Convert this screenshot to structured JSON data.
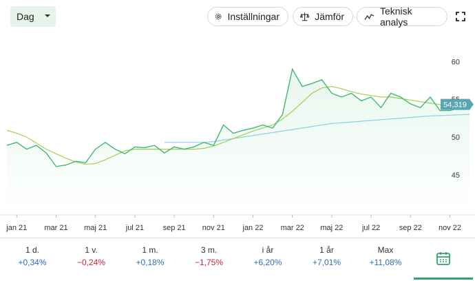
{
  "toolbar": {
    "interval": "Dag",
    "buttons": [
      "Inställningar",
      "Jämför",
      "Teknisk analys"
    ]
  },
  "chart_data": {
    "type": "line",
    "categories": [
      null,
      "jan 21",
      null,
      null,
      null,
      "mar 21",
      null,
      null,
      null,
      "maj 21",
      null,
      null,
      null,
      "jul 21",
      null,
      null,
      null,
      "sep 21",
      null,
      null,
      null,
      "nov 21",
      null,
      null,
      null,
      "jan 22",
      null,
      null,
      null,
      "mar 22",
      null,
      null,
      null,
      "maj 22",
      null,
      null,
      null,
      "jul 22",
      null,
      null,
      null,
      "sep 22",
      null,
      null,
      null,
      "nov 22",
      null,
      null
    ],
    "series": [
      {
        "color": "#3dba72",
        "values": [
          48.9,
          49.3,
          48.4,
          48.9,
          47.9,
          46.1,
          46.3,
          46.8,
          46.6,
          48.4,
          49.3,
          48.4,
          47.8,
          48.7,
          48.6,
          48.9,
          47.9,
          48.7,
          48.4,
          48.7,
          49.3,
          48.9,
          51.6,
          50.5,
          50.9,
          51.2,
          51.6,
          51.2,
          53.0,
          59.0,
          56.7,
          57.1,
          57.6,
          55.8,
          55.3,
          55.8,
          54.8,
          55.3,
          53.9,
          55.8,
          55.3,
          54.4,
          53.9,
          55.3,
          53.5,
          53.5,
          53.9,
          54.319
        ],
        "value_labels": [
          null,
          null,
          null,
          null,
          null,
          null,
          null,
          null,
          null,
          null,
          null,
          null,
          null,
          null,
          null,
          null,
          null,
          null,
          null,
          null,
          null,
          null,
          null,
          null,
          null,
          null,
          null,
          null,
          null,
          null,
          null,
          null,
          null,
          null,
          null,
          null,
          null,
          null,
          null,
          null,
          null,
          null,
          null,
          null,
          null,
          null,
          null,
          "54,319"
        ]
      },
      {
        "color": "#a8d04a",
        "values": [
          50.9,
          50.5,
          50.0,
          49.2,
          48.4,
          47.8,
          47.2,
          46.7,
          46.4,
          46.5,
          47.0,
          47.6,
          48.2,
          48.4,
          48.4,
          48.4,
          48.4,
          48.4,
          48.4,
          48.4,
          48.5,
          48.8,
          49.3,
          49.8,
          50.3,
          50.8,
          51.2,
          51.6,
          52.4,
          53.4,
          54.6,
          55.8,
          56.5,
          56.7,
          56.4,
          56.0,
          55.7,
          55.5,
          55.3,
          55.3,
          55.1,
          54.9,
          54.7,
          54.5,
          54.3,
          54.2,
          54.2,
          54.2
        ]
      },
      {
        "color": "#8fd3e8",
        "values": [
          null,
          null,
          null,
          null,
          null,
          null,
          null,
          null,
          null,
          null,
          null,
          null,
          null,
          null,
          null,
          null,
          49.3,
          49.3,
          49.3,
          49.3,
          49.3,
          49.4,
          49.6,
          49.8,
          50.0,
          50.2,
          50.4,
          50.6,
          50.8,
          51.0,
          51.2,
          51.4,
          51.6,
          51.8,
          51.9,
          52.0,
          52.1,
          52.2,
          52.3,
          52.4,
          52.5,
          52.6,
          52.7,
          52.8,
          52.85,
          52.9,
          52.95,
          53.0
        ]
      }
    ],
    "ylim": [
      39.7,
      64.5
    ],
    "yticks": [
      45,
      50,
      55,
      60
    ],
    "grid": false
  },
  "periods": [
    {
      "label": "1 d.",
      "change": "+0,34%",
      "color": "#2d6fb5"
    },
    {
      "label": "1 v.",
      "change": "−0,24%",
      "color": "#c8243d"
    },
    {
      "label": "1 m.",
      "change": "+0,18%",
      "color": "#2d6fb5"
    },
    {
      "label": "3 m.",
      "change": "−1,75%",
      "color": "#c8243d"
    },
    {
      "label": "i år",
      "change": "+6,20%",
      "color": "#2d6fb5"
    },
    {
      "label": "1 år",
      "change": "+7,01%",
      "color": "#2d6fb5"
    },
    {
      "label": "Max",
      "change": "+11,08%",
      "color": "#2d6fb5"
    }
  ]
}
